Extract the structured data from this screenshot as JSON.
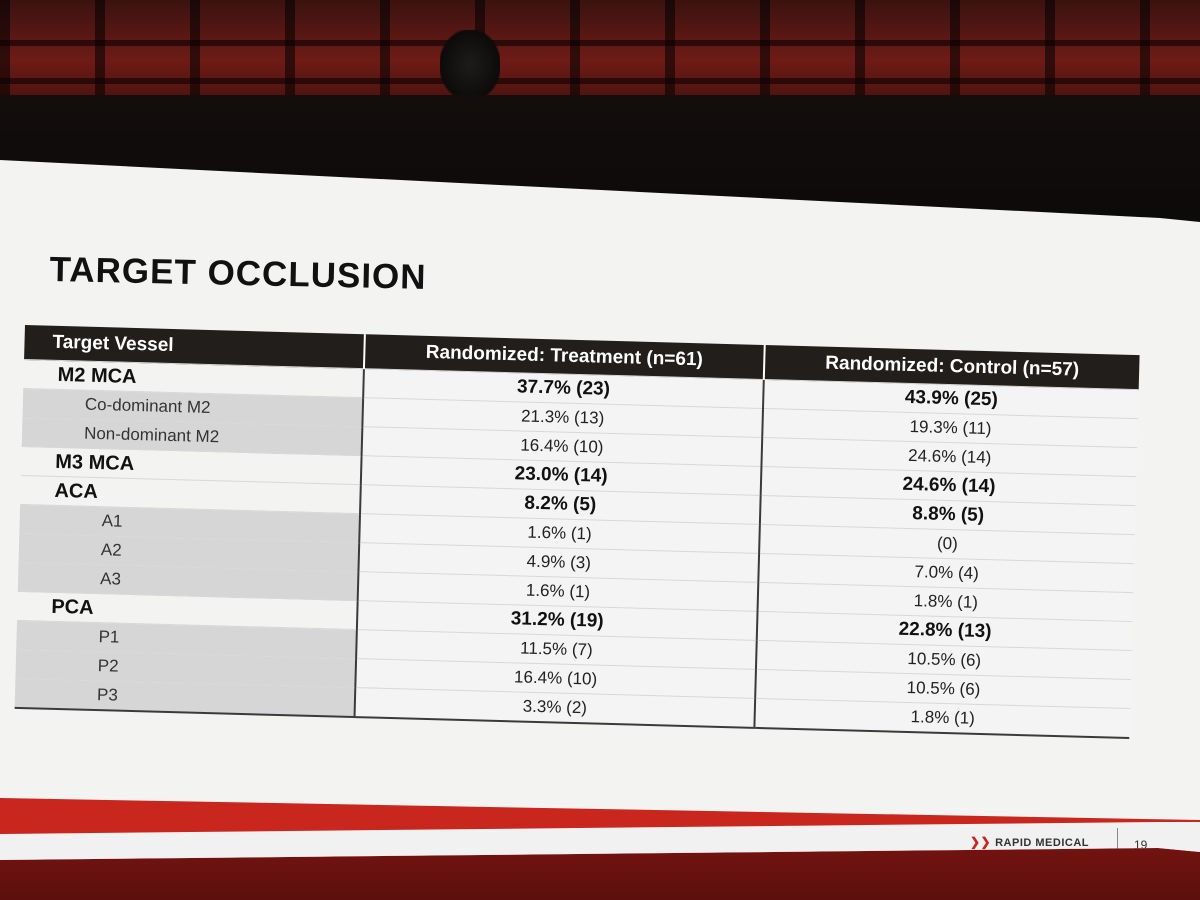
{
  "slide": {
    "title": "TARGET OCCLUSION",
    "brand": "RAPID MEDICAL",
    "page_number": "19"
  },
  "table": {
    "headers": [
      "Target Vessel",
      "Randomized: Treatment (n=61)",
      "Randomized: Control (n=57)"
    ],
    "rows": [
      {
        "label": "M2 MCA",
        "treatment": "37.7% (23)",
        "control": "43.9% (25)"
      },
      {
        "label": "Co-dominant M2",
        "treatment": "21.3% (13)",
        "control": "19.3% (11)"
      },
      {
        "label": "Non-dominant M2",
        "treatment": "16.4% (10)",
        "control": "24.6% (14)"
      },
      {
        "label": "M3 MCA",
        "treatment": "23.0% (14)",
        "control": "24.6% (14)"
      },
      {
        "label": "ACA",
        "treatment": "8.2% (5)",
        "control": "8.8% (5)"
      },
      {
        "label": "A1",
        "treatment": "1.6% (1)",
        "control": "(0)"
      },
      {
        "label": "A2",
        "treatment": "4.9% (3)",
        "control": "7.0% (4)"
      },
      {
        "label": "A3",
        "treatment": "1.6% (1)",
        "control": "1.8% (1)"
      },
      {
        "label": "PCA",
        "treatment": "31.2% (19)",
        "control": "22.8% (13)"
      },
      {
        "label": "P1",
        "treatment": "11.5% (7)",
        "control": "10.5% (6)"
      },
      {
        "label": "P2",
        "treatment": "16.4% (10)",
        "control": "10.5% (6)"
      },
      {
        "label": "P3",
        "treatment": "3.3% (2)",
        "control": "1.8% (1)"
      }
    ]
  },
  "colors": {
    "accent_red": "#c9261e",
    "header_dark": "#221e1c",
    "slide_bg": "#f3f3f2"
  }
}
